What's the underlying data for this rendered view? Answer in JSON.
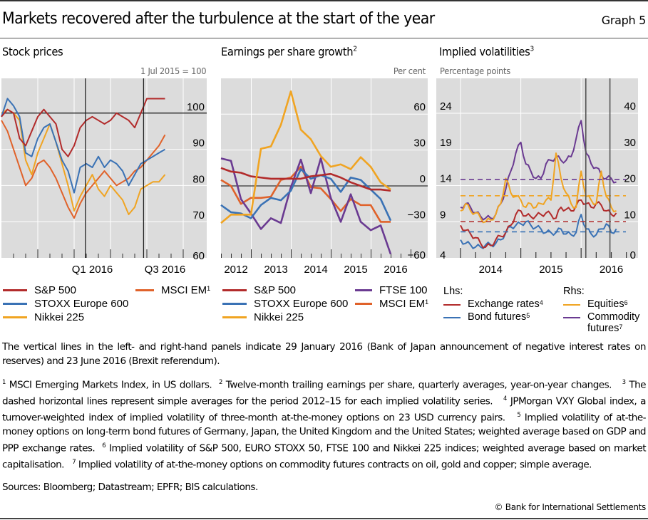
{
  "header": {
    "title": "Markets recovered after the turbulence at the start of the year",
    "graph_number": "Graph 5"
  },
  "chart_data": [
    {
      "id": "stock-prices",
      "type": "line",
      "title": "Stock prices",
      "unit_label": "1 Jul 2015 = 100",
      "xlabel": "",
      "ylabel": "",
      "ylim": [
        60,
        110
      ],
      "yticks": [
        60,
        70,
        80,
        90,
        100
      ],
      "xaxis": {
        "start": "2015-07",
        "end": "2016-10",
        "tick": "month",
        "labels": [
          {
            "text": "Q1 2016",
            "month": "2016-01"
          },
          {
            "text": "Q3 2016",
            "month": "2016-07"
          }
        ]
      },
      "reference_line": 100,
      "vertical_lines": [
        {
          "date": "2016-01-29"
        },
        {
          "date": "2016-06-23"
        }
      ],
      "x_months": [
        0.0,
        0.5,
        1.0,
        1.5,
        2.0,
        2.5,
        3.0,
        3.5,
        4.0,
        4.5,
        5.0,
        5.5,
        6.0,
        6.5,
        7.0,
        7.5,
        8.0,
        8.5,
        9.0,
        9.5,
        10.0,
        10.5,
        11.0,
        11.5,
        12.0,
        12.5,
        13.0,
        13.5
      ],
      "series": [
        {
          "name": "S&P 500",
          "color": "#b22b2b",
          "values": [
            99,
            101,
            100,
            93,
            91,
            95,
            99,
            101,
            99,
            97,
            90,
            88,
            91,
            96,
            98,
            99,
            98,
            97,
            98,
            100,
            99,
            98,
            96,
            100,
            104,
            104,
            104,
            104
          ]
        },
        {
          "name": "STOXX Europe 600",
          "color": "#3a72b5",
          "values": [
            99,
            104,
            102,
            99,
            89,
            88,
            93,
            96,
            97,
            92,
            87,
            84,
            78,
            85,
            86,
            85,
            88,
            85,
            87,
            86,
            84,
            80,
            83,
            86,
            87,
            88,
            89,
            90
          ]
        },
        {
          "name": "Nikkei 225",
          "color": "#f0a422",
          "values": [
            100,
            101,
            100,
            98,
            87,
            83,
            89,
            93,
            97,
            92,
            86,
            80,
            73,
            77,
            80,
            83,
            79,
            77,
            80,
            78,
            76,
            72,
            74,
            79,
            80,
            81,
            81,
            83
          ]
        },
        {
          "name": "MSCI EM",
          "sup": "1",
          "color": "#e0622a",
          "values": [
            98,
            95,
            90,
            85,
            80,
            82,
            86,
            87,
            85,
            82,
            78,
            74,
            71,
            75,
            78,
            80,
            82,
            84,
            82,
            80,
            81,
            82,
            84,
            85,
            87,
            89,
            91,
            94
          ]
        }
      ],
      "legend": {
        "placement": "bottom",
        "items": [
          {
            "label": "S&P 500",
            "sup": ""
          },
          {
            "label": "STOXX Europe 600",
            "sup": ""
          },
          {
            "label": "Nikkei 225",
            "sup": ""
          },
          {
            "label": "MSCI EM",
            "sup": "1"
          }
        ]
      }
    },
    {
      "id": "eps-growth",
      "type": "line",
      "title": "Earnings per share growth",
      "title_sup": "2",
      "unit_label": "Per cent",
      "ylim": [
        -60,
        90
      ],
      "yticks": [
        -60,
        -30,
        0,
        30,
        60
      ],
      "ytick_labels": [
        "−60",
        "−30",
        "0",
        "30",
        "60"
      ],
      "xaxis": {
        "labels": [
          "2012",
          "2013",
          "2014",
          "2015",
          "2016"
        ]
      },
      "reference_line": 0,
      "x_quarters": [
        0,
        1,
        2,
        3,
        4,
        5,
        6,
        7,
        8,
        9,
        10,
        11,
        12,
        13,
        14,
        15,
        16,
        17
      ],
      "series": [
        {
          "name": "S&P 500",
          "color": "#b22b2b",
          "values": [
            15,
            12,
            11,
            8,
            7,
            6,
            6,
            6,
            6,
            8,
            9,
            10,
            7,
            3,
            0,
            -3,
            -3,
            -4
          ]
        },
        {
          "name": "STOXX Europe 600",
          "color": "#3a72b5",
          "values": [
            -16,
            -22,
            -23,
            -27,
            -16,
            -10,
            -12,
            -4,
            14,
            6,
            9,
            6,
            -5,
            7,
            5,
            -3,
            -11,
            -29
          ]
        },
        {
          "name": "Nikkei 225",
          "color": "#f0a422",
          "values": [
            -31,
            -24,
            -24,
            -24,
            31,
            33,
            51,
            79,
            47,
            39,
            25,
            16,
            18,
            14,
            24,
            16,
            3,
            -3
          ]
        },
        {
          "name": "FTSE 100",
          "color": "#6a3a91",
          "values": [
            23,
            21,
            -11,
            -23,
            -36,
            -27,
            -31,
            -1,
            22,
            -6,
            23,
            -10,
            -30,
            -7,
            -30,
            -37,
            -33,
            -57
          ]
        },
        {
          "name": "MSCI EM",
          "sup": "1",
          "color": "#e0622a",
          "values": [
            5,
            0,
            -15,
            -10,
            -10,
            -9,
            5,
            7,
            16,
            -1,
            -2,
            -11,
            -21,
            -11,
            -16,
            -16,
            -30,
            -30
          ]
        }
      ],
      "legend": {
        "placement": "bottom",
        "items": [
          {
            "label": "S&P 500",
            "sup": ""
          },
          {
            "label": "FTSE 100",
            "sup": ""
          },
          {
            "label": "STOXX Europe 600",
            "sup": ""
          },
          {
            "label": "MSCI EM",
            "sup": "1"
          },
          {
            "label": "Nikkei 225",
            "sup": ""
          }
        ]
      }
    },
    {
      "id": "implied-volatilities",
      "type": "line",
      "title": "Implied volatilities",
      "title_sup": "3",
      "unit_label": "Percentage points",
      "ylim_left": [
        4,
        28
      ],
      "yticks_left": [
        4,
        9,
        14,
        19,
        24
      ],
      "ylim_right": [
        0,
        48
      ],
      "yticks_right": [
        0,
        10,
        20,
        30,
        40
      ],
      "xaxis": {
        "start": "2013-09",
        "labels": [
          "2014",
          "2015",
          "2016"
        ]
      },
      "vertical_lines": [
        {
          "date": "2016-01-29"
        },
        {
          "date": "2016-06-23"
        }
      ],
      "x_months_from_jan2014": [
        0,
        1,
        2,
        3,
        4,
        5,
        6,
        7,
        8,
        9,
        10,
        11,
        12,
        13,
        14,
        15,
        16,
        17,
        18,
        19,
        20,
        21,
        22,
        23,
        24,
        25,
        26,
        27,
        28,
        29,
        30,
        31
      ],
      "series": [
        {
          "name": "Exchange rates",
          "sup": "4",
          "axis": "left",
          "color": "#b22b2b",
          "average_2012_15": 9.0,
          "values": [
            8.5,
            7.8,
            7.3,
            6.8,
            6.0,
            5.5,
            5.7,
            6.5,
            7.0,
            7.5,
            8.5,
            10.0,
            10.5,
            9.8,
            9.7,
            9.8,
            10.0,
            10.2,
            10.0,
            9.5,
            11.0,
            10.7,
            10.5,
            11.2,
            12.0,
            11.5,
            11.0,
            11.5,
            11.3,
            10.5,
            10.0,
            10.2
          ]
        },
        {
          "name": "Bond futures",
          "sup": "5",
          "axis": "left",
          "color": "#3a72b5",
          "average_2012_15": 7.6,
          "values": [
            6.5,
            6.0,
            5.8,
            5.5,
            5.5,
            5.8,
            5.8,
            6.0,
            6.5,
            7.5,
            8.3,
            8.5,
            8.7,
            9.0,
            8.5,
            8.2,
            8.0,
            7.5,
            7.5,
            7.5,
            8.0,
            7.3,
            7.2,
            7.5,
            10.0,
            8.0,
            7.3,
            7.2,
            8.0,
            8.7,
            7.5,
            8.0
          ]
        },
        {
          "name": "Equities",
          "sup": "6",
          "axis": "right",
          "color": "#f0a422",
          "average_2012_15": 17.2,
          "values": [
            13,
            15,
            13,
            12.5,
            11,
            10,
            10.5,
            12,
            15,
            22,
            18,
            17,
            16,
            14,
            15,
            14,
            15,
            16,
            16,
            29,
            22,
            18,
            15,
            14,
            24,
            17,
            16,
            15,
            24,
            17,
            14,
            13
          ]
        },
        {
          "name": "Commodity futures",
          "sup": "7",
          "axis": "right",
          "color": "#6a3a91",
          "average_2012_15": 21.7,
          "values": [
            14,
            15,
            14,
            12.5,
            11.5,
            11,
            11,
            12,
            15,
            19,
            24,
            29,
            32,
            26,
            24,
            22,
            22,
            26,
            27,
            28,
            27,
            27,
            28,
            33,
            38,
            29,
            26,
            25,
            23,
            22,
            22,
            21
          ]
        }
      ],
      "legend": {
        "placement": "bottom",
        "groups": [
          {
            "heading": "Lhs:",
            "items": [
              {
                "label": "Exchange rates",
                "sup": "4"
              },
              {
                "label": "Bond futures",
                "sup": "5"
              }
            ]
          },
          {
            "heading": "Rhs:",
            "items": [
              {
                "label": "Equities",
                "sup": "6"
              },
              {
                "label": "Commodity",
                "label2": "futures",
                "sup": "7"
              }
            ]
          }
        ]
      }
    }
  ],
  "notes": {
    "vertical_lines": "The vertical lines in the left- and right-hand panels indicate 29 January 2016 (Bank of Japan announcement of negative interest rates on reserves) and 23 June 2016 (Brexit referendum).",
    "footnotes": [
      {
        "n": "1",
        "text": "MSCI Emerging Markets Index, in US dollars."
      },
      {
        "n": "2",
        "text": "Twelve-month trailing earnings per share, quarterly averages, year-on-year changes."
      },
      {
        "n": "3",
        "text": "The dashed horizontal lines represent simple averages for the period 2012–15 for each implied volatility series."
      },
      {
        "n": "4",
        "text": "JPMorgan VXY Global index, a turnover-weighted index of implied volatility of three-month at-the-money options on 23 USD currency pairs."
      },
      {
        "n": "5",
        "text": "Implied volatility of at-the-money options on long-term bond futures of Germany, Japan, the United Kingdom and the United States; weighted average based on GDP and PPP exchange rates."
      },
      {
        "n": "6",
        "text": "Implied volatility of S&P 500, EURO STOXX 50, FTSE 100 and Nikkei 225 indices; weighted average based on market capitalisation."
      },
      {
        "n": "7",
        "text": "Implied volatility of at-the-money options on commodity futures contracts on oil, gold and copper; simple average."
      }
    ],
    "sources": "Sources: Bloomberg; Datastream; EPFR; BIS calculations.",
    "copyright": "© Bank for International Settlements"
  }
}
